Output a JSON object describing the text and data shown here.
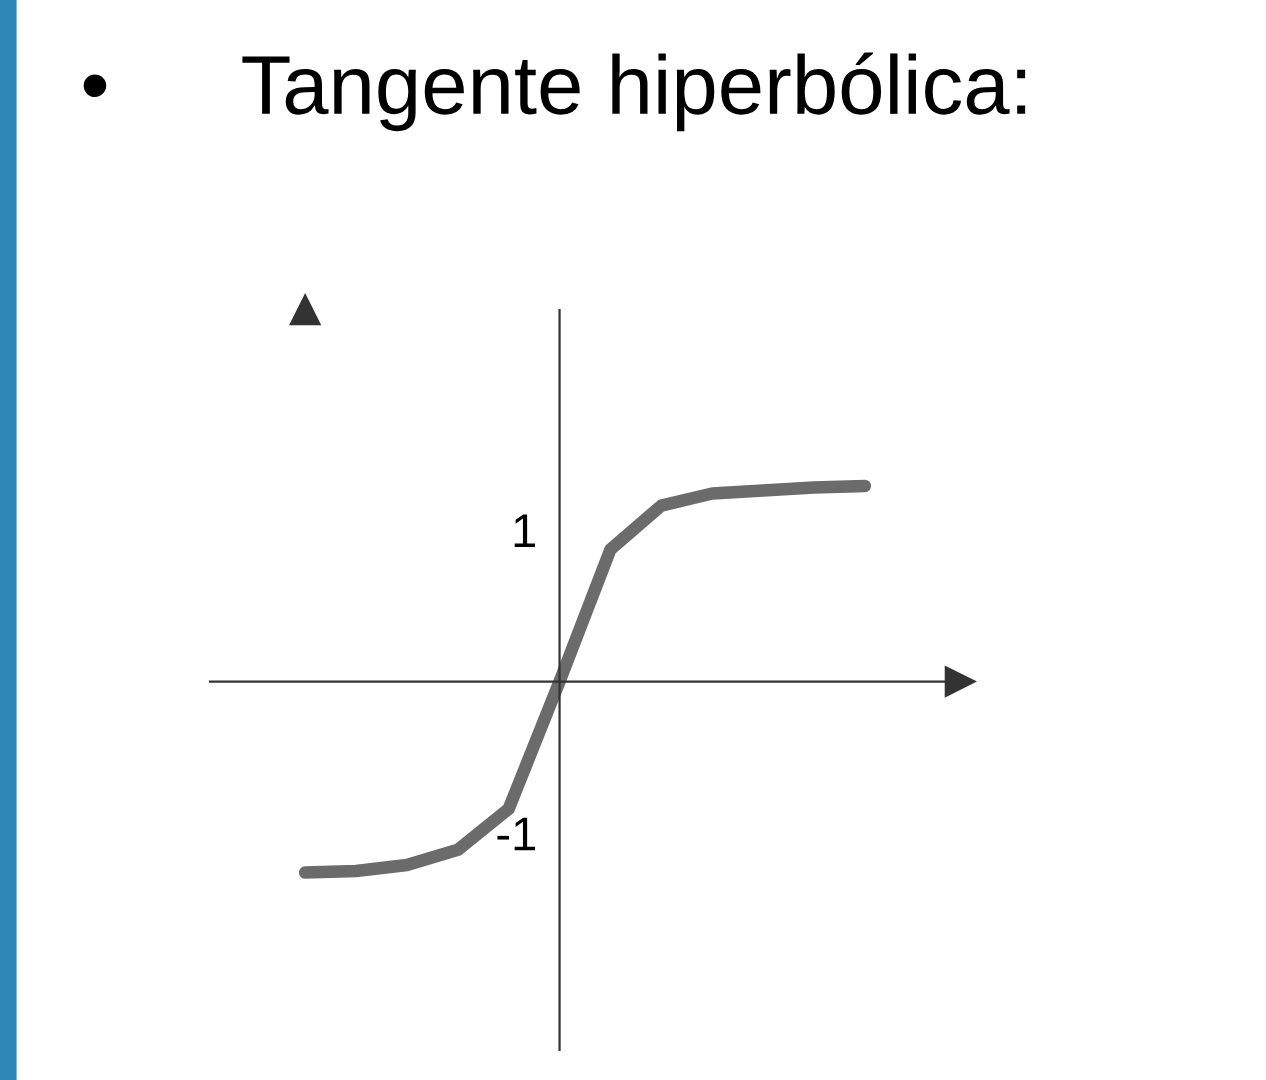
{
  "chart_data": {
    "type": "line",
    "title": "Tangente hiperbólica:",
    "annotations": [
      "•"
    ],
    "categories": [
      null,
      null,
      null,
      null,
      null,
      null,
      null,
      null,
      null,
      null,
      null,
      null
    ],
    "series": [
      {
        "color": "#6b6b6b",
        "values": [
          -1.26,
          -1.25,
          -1.21,
          -1.11,
          -0.84,
          0,
          0.87,
          1.16,
          1.24,
          1.26,
          1.28,
          1.29
        ]
      }
    ],
    "ylim": [
      -2.43,
      2.45
    ],
    "yticks": [
      -1,
      1
    ],
    "tick_labels": "y",
    "grid": false,
    "legend": false,
    "line_style": "solid",
    "marker": "none"
  }
}
